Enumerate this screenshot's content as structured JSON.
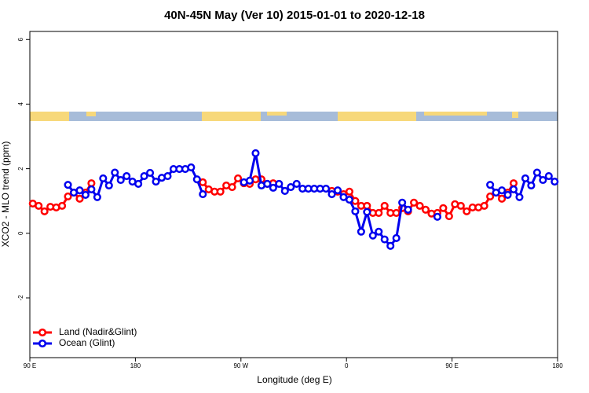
{
  "chart_data": {
    "type": "line",
    "title": "40N-45N May (Ver 10)   2015-01-01 to 2020-12-18",
    "x_label": "Longitude (deg E)",
    "y_label": "XCO2 - MLO trend (ppm)",
    "x": [
      92.5,
      97.5,
      102.5,
      107.5,
      112.5,
      117.5,
      122.5,
      127.5,
      132.5,
      137.5,
      142.5,
      147.5,
      152.5,
      157.5,
      162.5,
      167.5,
      172.5,
      177.5,
      182.5,
      187.5,
      192.5,
      197.5,
      202.5,
      207.5,
      212.5,
      217.5,
      222.5,
      227.5,
      232.5,
      237.5,
      242.5,
      247.5,
      252.5,
      257.5,
      262.5,
      267.5,
      272.5,
      277.5,
      282.5,
      287.5,
      292.5,
      297.5,
      302.5,
      307.5,
      312.5,
      317.5,
      322.5,
      327.5,
      332.5,
      337.5,
      342.5,
      347.5,
      352.5,
      357.5,
      362.5,
      367.5,
      372.5,
      377.5,
      382.5,
      387.5,
      392.5,
      397.5,
      402.5,
      407.5,
      412.5,
      417.5,
      422.5,
      427.5,
      432.5,
      437.5,
      442.5,
      447.5,
      452.5,
      457.5,
      462.5,
      467.5,
      472.5,
      477.5,
      482.5,
      487.5,
      492.5,
      497.5,
      502.5,
      507.5,
      512.5,
      517.5,
      522.5,
      527.5,
      532.5,
      537.5
    ],
    "series": [
      {
        "name": "Land (Nadir&Glint)",
        "color": "#ff0000",
        "values": [
          0.92,
          0.85,
          0.68,
          0.82,
          0.8,
          0.85,
          1.14,
          1.26,
          1.07,
          1.26,
          1.55,
          null,
          null,
          null,
          null,
          null,
          null,
          null,
          null,
          null,
          null,
          null,
          null,
          null,
          null,
          null,
          null,
          null,
          null,
          1.58,
          1.36,
          1.29,
          1.29,
          1.48,
          1.43,
          1.7,
          1.55,
          1.53,
          1.67,
          1.67,
          1.53,
          1.55,
          null,
          null,
          null,
          null,
          null,
          null,
          null,
          null,
          null,
          1.31,
          1.29,
          1.21,
          1.29,
          1.0,
          0.85,
          0.85,
          0.63,
          0.63,
          0.85,
          0.63,
          0.63,
          0.78,
          0.68,
          0.95,
          0.85,
          0.73,
          0.61,
          0.63,
          0.78,
          0.53,
          0.9,
          0.85,
          0.68,
          0.8,
          0.8,
          0.85,
          1.14,
          1.26,
          1.07,
          1.26,
          1.55,
          null,
          null,
          null,
          null,
          null,
          null,
          null
        ]
      },
      {
        "name": "Ocean (Glint)",
        "color": "#0000ee",
        "values": [
          null,
          null,
          null,
          null,
          null,
          null,
          1.5,
          1.26,
          1.33,
          1.19,
          1.36,
          1.12,
          1.7,
          1.48,
          1.88,
          1.65,
          1.77,
          1.6,
          1.53,
          1.77,
          1.87,
          1.6,
          1.72,
          1.77,
          1.99,
          1.99,
          1.99,
          2.04,
          1.67,
          1.21,
          null,
          null,
          null,
          null,
          null,
          null,
          1.58,
          1.63,
          2.48,
          1.48,
          1.53,
          1.41,
          1.53,
          1.31,
          1.43,
          1.53,
          1.38,
          1.38,
          1.38,
          1.38,
          1.38,
          1.21,
          1.33,
          1.12,
          1.04,
          0.68,
          0.05,
          0.66,
          -0.07,
          0.05,
          -0.19,
          -0.39,
          -0.15,
          0.95,
          0.73,
          null,
          null,
          null,
          null,
          0.51,
          null,
          null,
          null,
          null,
          null,
          null,
          null,
          null,
          1.5,
          1.26,
          1.33,
          1.19,
          1.36,
          1.12,
          1.7,
          1.48,
          1.88,
          1.65,
          1.77,
          1.6
        ]
      }
    ],
    "xlim": [
      90,
      540
    ],
    "xticks": [
      {
        "value": 90,
        "label": "90 E"
      },
      180,
      {
        "value": 270,
        "label": "90 W"
      },
      {
        "value": 360,
        "label": "0"
      },
      {
        "value": 450,
        "label": "90 E"
      },
      {
        "value": 540,
        "label": "180"
      }
    ],
    "ylim": [
      -3.85,
      6.25
    ],
    "yticks": [
      -2,
      0,
      2,
      4,
      6
    ],
    "legend": "bottom-left"
  }
}
